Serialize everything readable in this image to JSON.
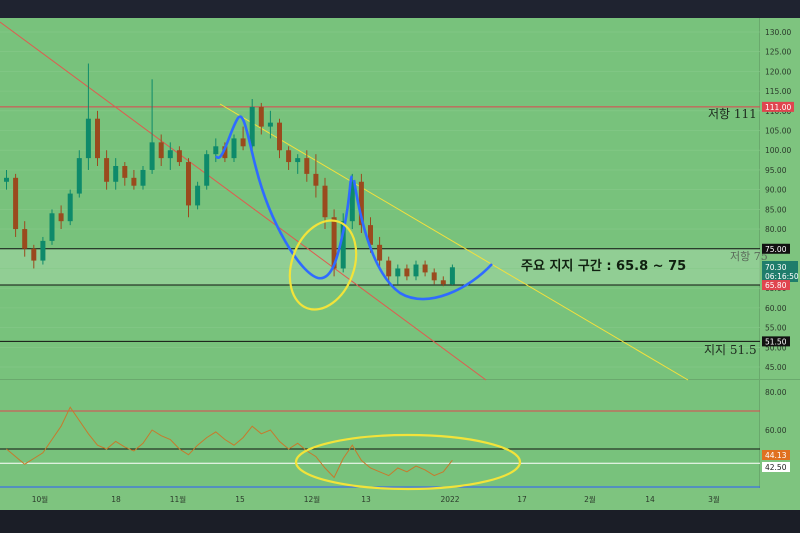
{
  "chart_data": {
    "type": "candlestick",
    "price_axis": {
      "ticks": [
        130,
        125,
        120,
        115,
        110,
        105,
        100,
        95,
        90,
        85,
        80,
        75,
        70,
        65,
        60,
        55,
        50,
        45
      ],
      "ylim": [
        42,
        132
      ]
    },
    "oscillator_axis": {
      "ticks": [
        80,
        60,
        40
      ],
      "levels": {
        "upper": 70,
        "middle": 50,
        "lower": 30
      }
    },
    "time_axis": [
      "10월",
      "18",
      "11월",
      "15",
      "12월",
      "13",
      "2022",
      "17",
      "2월",
      "14",
      "3월"
    ],
    "candles": [
      [
        92,
        95,
        90,
        93
      ],
      [
        93,
        94,
        78,
        80
      ],
      [
        80,
        82,
        73,
        75
      ],
      [
        75,
        76,
        70,
        72
      ],
      [
        72,
        78,
        71,
        77
      ],
      [
        77,
        85,
        76,
        84
      ],
      [
        84,
        86,
        80,
        82
      ],
      [
        82,
        90,
        81,
        89
      ],
      [
        89,
        100,
        88,
        98
      ],
      [
        98,
        122,
        95,
        108
      ],
      [
        108,
        110,
        96,
        98
      ],
      [
        98,
        100,
        90,
        92
      ],
      [
        92,
        98,
        90,
        96
      ],
      [
        96,
        97,
        91,
        93
      ],
      [
        93,
        95,
        90,
        91
      ],
      [
        91,
        96,
        90,
        95
      ],
      [
        95,
        118,
        94,
        102
      ],
      [
        102,
        104,
        96,
        98
      ],
      [
        98,
        102,
        95,
        100
      ],
      [
        100,
        101,
        96,
        97
      ],
      [
        97,
        98,
        83,
        86
      ],
      [
        86,
        92,
        85,
        91
      ],
      [
        91,
        100,
        90,
        99
      ],
      [
        99,
        103,
        97,
        101
      ],
      [
        101,
        102,
        97,
        98
      ],
      [
        98,
        104,
        97,
        103
      ],
      [
        103,
        106,
        100,
        101
      ],
      [
        101,
        113,
        100,
        111
      ],
      [
        111,
        112,
        104,
        106
      ],
      [
        106,
        110,
        103,
        107
      ],
      [
        107,
        108,
        98,
        100
      ],
      [
        100,
        101,
        95,
        97
      ],
      [
        97,
        99,
        94,
        98
      ],
      [
        98,
        100,
        92,
        94
      ],
      [
        94,
        99,
        88,
        91
      ],
      [
        91,
        93,
        80,
        83
      ],
      [
        83,
        85,
        68,
        70
      ],
      [
        70,
        84,
        69,
        82
      ],
      [
        82,
        94,
        80,
        92
      ],
      [
        92,
        94,
        79,
        81
      ],
      [
        81,
        83,
        74,
        76
      ],
      [
        76,
        78,
        70,
        72
      ],
      [
        72,
        73,
        66,
        68
      ],
      [
        68,
        71,
        66,
        70
      ],
      [
        70,
        71,
        67,
        68
      ],
      [
        68,
        72,
        67,
        71
      ],
      [
        71,
        72,
        68,
        69
      ],
      [
        69,
        70,
        66,
        67
      ],
      [
        67,
        68,
        65.5,
        66
      ],
      [
        66,
        71,
        65.8,
        70.3
      ]
    ],
    "oscillator_values": [
      50,
      46,
      42,
      45,
      48,
      55,
      62,
      72,
      65,
      58,
      52,
      50,
      54,
      51,
      49,
      53,
      60,
      57,
      55,
      50,
      47,
      52,
      56,
      59,
      55,
      52,
      56,
      62,
      58,
      60,
      54,
      50,
      53,
      49,
      46,
      40,
      35,
      45,
      52,
      44,
      40,
      38,
      36,
      40,
      38,
      41,
      39,
      36,
      38,
      44.13
    ],
    "horizontal_levels": [
      {
        "price": 111.0,
        "label": "111.00",
        "note": "저항 111"
      },
      {
        "price": 75.0,
        "label": "75.00",
        "note": "저항 75"
      },
      {
        "price": 65.8,
        "label": "65.80"
      },
      {
        "price": 51.5,
        "label": "51.50",
        "note": "지지 51.5"
      }
    ],
    "current_price": {
      "value": "70.30",
      "countdown": "06:16:50"
    },
    "oscillator_tags": {
      "current": "44.13",
      "level": "42.50"
    },
    "zone_annotation": "주요 지지 구간 : 65.8 ~ 75"
  },
  "colors": {
    "panel": "#78c27c",
    "up": "#0e8a6a",
    "down": "#9a4a1e",
    "oscillator_line": "#c77a2c",
    "resistance_line": "#e0454f",
    "trend_red": "#e05a4f",
    "trend_yellow": "#f4e03c",
    "curve_blue": "#2f6bff",
    "circle_yellow": "#f2e33a"
  }
}
